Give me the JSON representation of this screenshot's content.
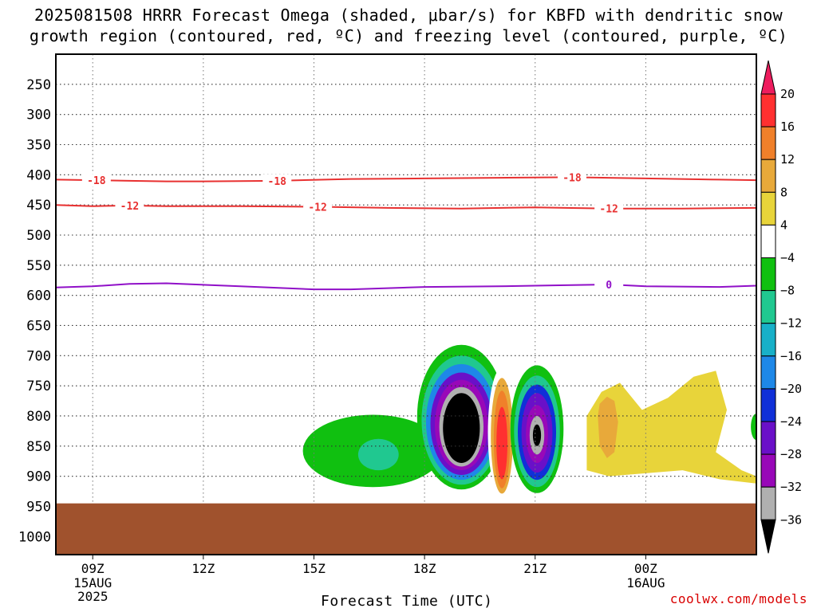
{
  "title_line1": "2025081508 HRRR Forecast Omega (shaded, μbar/s) for KBFD with dendritic snow",
  "title_line2": "growth region (contoured, red, ºC) and freezing level (contoured, purple, ºC)",
  "watermark": "coolwx.com/models",
  "chart_data": {
    "type": "heatmap",
    "x_axis": {
      "label": "Forecast Time (UTC)",
      "ticks": [
        {
          "hour": 9,
          "label": "09Z",
          "sub": [
            "15AUG",
            "2025"
          ]
        },
        {
          "hour": 12,
          "label": "12Z",
          "sub": []
        },
        {
          "hour": 15,
          "label": "15Z",
          "sub": []
        },
        {
          "hour": 18,
          "label": "18Z",
          "sub": []
        },
        {
          "hour": 21,
          "label": "21Z",
          "sub": []
        },
        {
          "hour": 24,
          "label": "00Z",
          "sub": [
            "16AUG"
          ]
        }
      ],
      "range_hours_since_00z_15aug": [
        8,
        27
      ]
    },
    "y_axis": {
      "unit": "hPa",
      "ticks": [
        250,
        300,
        350,
        400,
        450,
        500,
        550,
        600,
        650,
        700,
        750,
        800,
        850,
        900,
        950,
        1000
      ],
      "range": [
        1030,
        200
      ],
      "grid": true
    },
    "ground_below_hpa": 945,
    "colorbar": {
      "labels": [
        20,
        16,
        12,
        8,
        4,
        -4,
        -8,
        -12,
        -16,
        -20,
        -24,
        -28,
        -32,
        -36
      ],
      "colors": [
        "#ee1c5e",
        "#ff3030",
        "#f0802a",
        "#e8a93a",
        "#e8d43a",
        "#ffffff",
        "#10c010",
        "#20c890",
        "#18b0c8",
        "#1e88e8",
        "#1030d8",
        "#6a10c8",
        "#9808b8",
        "#b0b0b0",
        "#000000"
      ]
    },
    "contours": [
      {
        "name": "-18 ºC",
        "color": "#e83030",
        "label": "-18",
        "points": [
          [
            8,
            408
          ],
          [
            9,
            409
          ],
          [
            10,
            410
          ],
          [
            11,
            411
          ],
          [
            12,
            411
          ],
          [
            14,
            410
          ],
          [
            16,
            407
          ],
          [
            18,
            406
          ],
          [
            20,
            405
          ],
          [
            22,
            404
          ],
          [
            24,
            406
          ],
          [
            26,
            408
          ],
          [
            27,
            409
          ]
        ]
      },
      {
        "name": "-12 ºC",
        "color": "#e83030",
        "label": "-12",
        "points": [
          [
            8,
            450
          ],
          [
            9,
            452
          ],
          [
            10,
            451
          ],
          [
            11,
            452
          ],
          [
            13,
            452
          ],
          [
            15,
            453
          ],
          [
            17,
            455
          ],
          [
            19,
            456
          ],
          [
            21,
            454
          ],
          [
            23,
            456
          ],
          [
            25,
            456
          ],
          [
            27,
            455
          ]
        ]
      },
      {
        "name": "0 ºC",
        "color": "#9010c8",
        "label": "0",
        "points": [
          [
            8,
            587
          ],
          [
            9,
            585
          ],
          [
            10,
            581
          ],
          [
            11,
            580
          ],
          [
            13,
            585
          ],
          [
            15,
            590
          ],
          [
            16,
            590
          ],
          [
            18,
            586
          ],
          [
            20,
            585
          ],
          [
            21,
            584
          ],
          [
            22,
            583
          ],
          [
            23,
            582
          ],
          [
            24,
            585
          ],
          [
            26,
            586
          ],
          [
            27,
            584
          ]
        ]
      }
    ],
    "contour_label_positions": [
      {
        "series": 0,
        "hours": [
          9.1,
          14.0,
          22.0
        ]
      },
      {
        "series": 1,
        "hours": [
          10.0,
          15.1,
          23.0
        ]
      },
      {
        "series": 2,
        "hours": [
          23.0
        ]
      }
    ],
    "omega_regions": [
      {
        "name": "plume 10Z",
        "layers": [
          {
            "level": 4,
            "hours_hpa": [
              [
                9.75,
                420
              ],
              [
                9.85,
                408
              ],
              [
                10.0,
                430
              ],
              [
                10.15,
                520
              ],
              [
                10.2,
                640
              ],
              [
                10.25,
                740
              ],
              [
                10.1,
                780
              ],
              [
                9.8,
                760
              ],
              [
                9.7,
                700
              ],
              [
                9.65,
                580
              ],
              [
                9.7,
                450
              ]
            ]
          }
        ]
      },
      {
        "name": "cell 17Z",
        "layers": [
          {
            "level": -4,
            "center": [
              16.6,
              858
            ],
            "rx_hours": 1.9,
            "hpa_up": 60,
            "hpa_down": 60
          },
          {
            "level": -8,
            "center": [
              16.75,
              868
            ],
            "rx_hours": 0.55,
            "hpa_up": 30,
            "hpa_down": 22
          }
        ]
      },
      {
        "name": "cell 19Z",
        "layers": [
          {
            "level": -4,
            "center": [
              19.0,
              822
            ],
            "rx_hours": 1.2,
            "hpa_up": 140,
            "hpa_down": 100
          },
          {
            "level": -8,
            "center": [
              19.0,
              822
            ],
            "rx_hours": 1.08,
            "hpa_up": 122,
            "hpa_down": 92
          },
          {
            "level": -16,
            "center": [
              19.0,
              822
            ],
            "rx_hours": 0.96,
            "hpa_up": 108,
            "hpa_down": 84
          },
          {
            "level": -24,
            "center": [
              19.0,
              822
            ],
            "rx_hours": 0.84,
            "hpa_up": 94,
            "hpa_down": 76
          },
          {
            "level": -28,
            "center": [
              19.0,
              822
            ],
            "rx_hours": 0.72,
            "hpa_up": 82,
            "hpa_down": 68
          },
          {
            "level": -32,
            "center": [
              19.0,
              822
            ],
            "rx_hours": 0.6,
            "hpa_up": 70,
            "hpa_down": 62
          },
          {
            "level": -36,
            "center": [
              19.0,
              822
            ],
            "rx_hours": 0.5,
            "hpa_up": 60,
            "hpa_down": 56
          }
        ]
      },
      {
        "name": "cell 20Z",
        "layers": [
          {
            "level": 4,
            "center": [
              20.1,
              835
            ],
            "rx_hours": 0.38,
            "hpa_up": 115,
            "hpa_down": 100
          },
          {
            "level": 12,
            "center": [
              20.1,
              837
            ],
            "rx_hours": 0.3,
            "hpa_up": 100,
            "hpa_down": 92
          },
          {
            "level": 16,
            "center": [
              20.1,
              840
            ],
            "rx_hours": 0.22,
            "hpa_up": 82,
            "hpa_down": 80
          },
          {
            "level": 20,
            "center": [
              20.1,
              845
            ],
            "rx_hours": 0.15,
            "hpa_up": 60,
            "hpa_down": 60
          }
        ]
      },
      {
        "name": "cell 21Z",
        "layers": [
          {
            "level": -4,
            "center": [
              21.05,
              828
            ],
            "rx_hours": 0.72,
            "hpa_up": 112,
            "hpa_down": 100
          },
          {
            "level": -8,
            "center": [
              21.05,
              828
            ],
            "rx_hours": 0.62,
            "hpa_up": 95,
            "hpa_down": 90
          },
          {
            "level": -20,
            "center": [
              21.05,
              828
            ],
            "rx_hours": 0.52,
            "hpa_up": 80,
            "hpa_down": 78
          },
          {
            "level": -24,
            "center": [
              21.05,
              828
            ],
            "rx_hours": 0.42,
            "hpa_up": 66,
            "hpa_down": 66
          },
          {
            "level": -28,
            "center": [
              21.05,
              830
            ],
            "rx_hours": 0.3,
            "hpa_up": 48,
            "hpa_down": 48
          },
          {
            "level": -32,
            "center": [
              21.05,
              832
            ],
            "rx_hours": 0.2,
            "hpa_up": 32,
            "hpa_down": 32
          },
          {
            "level": -36,
            "center": [
              21.05,
              832
            ],
            "rx_hours": 0.11,
            "hpa_up": 18,
            "hpa_down": 18
          }
        ]
      },
      {
        "name": "band 23-27Z",
        "layers": [
          {
            "level": 4,
            "hours_hpa": [
              [
                22.0,
                900
              ],
              [
                22.0,
                780
              ],
              [
                22.3,
                735
              ],
              [
                23.0,
                705
              ],
              [
                23.6,
                730
              ],
              [
                24.0,
                770
              ],
              [
                24.6,
                745
              ],
              [
                25.4,
                690
              ],
              [
                26.0,
                648
              ],
              [
                26.3,
                662
              ],
              [
                26.5,
                745
              ],
              [
                26.6,
                790
              ],
              [
                26.9,
                880
              ],
              [
                27.0,
                922
              ],
              [
                26.0,
                912
              ],
              [
                25.0,
                900
              ],
              [
                24.0,
                905
              ],
              [
                23.0,
                905
              ],
              [
                22.3,
                905
              ]
            ]
          },
          {
            "level": 8,
            "hours_hpa": [
              [
                22.4,
                890
              ],
              [
                22.4,
                800
              ],
              [
                22.8,
                760
              ],
              [
                23.3,
                745
              ],
              [
                23.9,
                790
              ],
              [
                24.6,
                770
              ],
              [
                25.3,
                735
              ],
              [
                25.9,
                725
              ],
              [
                26.2,
                790
              ],
              [
                25.9,
                860
              ],
              [
                26.6,
                890
              ],
              [
                27.0,
                900
              ],
              [
                27.0,
                912
              ],
              [
                26.0,
                905
              ],
              [
                25.0,
                890
              ],
              [
                24.0,
                895
              ],
              [
                23.0,
                900
              ]
            ]
          },
          {
            "level": 12,
            "hours_hpa": [
              [
                22.75,
                780
              ],
              [
                22.95,
                768
              ],
              [
                23.15,
                775
              ],
              [
                23.25,
                810
              ],
              [
                23.15,
                860
              ],
              [
                22.95,
                870
              ],
              [
                22.75,
                850
              ],
              [
                22.7,
                800
              ]
            ]
          }
        ]
      },
      {
        "name": "edge 27Z",
        "layers": [
          {
            "level": -4,
            "center": [
              27.0,
              818
            ],
            "rx_hours": 0.15,
            "hpa_up": 22,
            "hpa_down": 22
          }
        ]
      }
    ]
  }
}
